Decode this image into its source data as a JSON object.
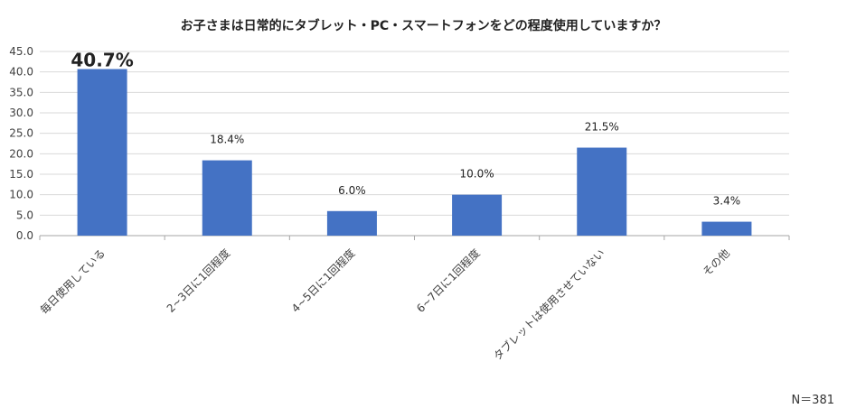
{
  "chart_data": {
    "type": "bar",
    "title": "お子さまは日常的にタブレット・PC・スマートフォンをどの程度使用していますか？",
    "categories": [
      "毎日使用している",
      "2~3日に1回程度",
      "4~5日に1回程度",
      "6~7日に1回程度",
      "タブレットは使用させていない",
      "その他"
    ],
    "values": [
      40.7,
      18.4,
      6.0,
      10.0,
      21.5,
      3.4
    ],
    "value_labels": [
      "40.7%",
      "18.4%",
      "6.0%",
      "10.0%",
      "21.5%",
      "3.4%"
    ],
    "y_ticks": [
      "0.0",
      "5.0",
      "10.0",
      "15.0",
      "20.0",
      "25.0",
      "30.0",
      "35.0",
      "40.0",
      "45.0"
    ],
    "ylim": [
      0,
      45
    ],
    "grid": true,
    "bar_color": "#4472C4",
    "note": "N＝381"
  }
}
